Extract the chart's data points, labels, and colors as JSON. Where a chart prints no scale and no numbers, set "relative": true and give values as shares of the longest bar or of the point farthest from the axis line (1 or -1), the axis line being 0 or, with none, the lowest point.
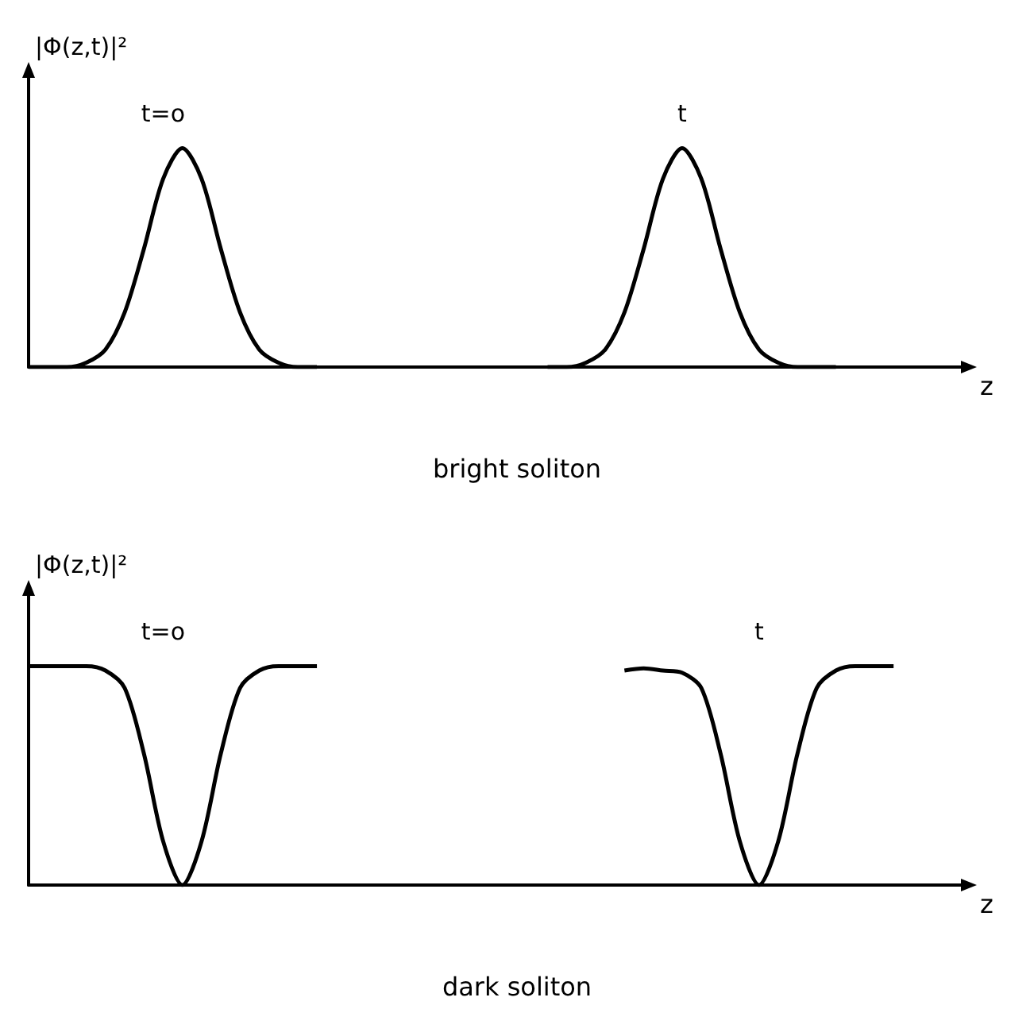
{
  "chart_data": [
    {
      "type": "line",
      "title": "bright soliton",
      "xlabel": "z",
      "ylabel": "|Φ(z,t)|²",
      "relative": true,
      "marker": "none",
      "categories": [
        null,
        null,
        null,
        null,
        null,
        null,
        null,
        null,
        null,
        null,
        null,
        null,
        null,
        null,
        null,
        null,
        null,
        null,
        null,
        null,
        null,
        null,
        null,
        null,
        null,
        null,
        null,
        null,
        null,
        null,
        null,
        null,
        null,
        null,
        null,
        null,
        null,
        null,
        null,
        null,
        null,
        null,
        null,
        null,
        null,
        null,
        null,
        null,
        null,
        null
      ],
      "series": [
        {
          "name": "t=o",
          "color": "#000000",
          "values": [
            0,
            0,
            0,
            0.02,
            0.08,
            0.25,
            0.54,
            0.86,
            1,
            0.86,
            0.54,
            0.25,
            0.08,
            0.02,
            0,
            0,
            null,
            null,
            null,
            null,
            null,
            null,
            null,
            null,
            null,
            null,
            null,
            null,
            null,
            null,
            null,
            null,
            null,
            null,
            null,
            null,
            null,
            null,
            null,
            null,
            null,
            null,
            null,
            null,
            null,
            null,
            null,
            null,
            null,
            null
          ]
        },
        {
          "name": "t",
          "color": "#000000",
          "values": [
            null,
            null,
            null,
            null,
            null,
            null,
            null,
            null,
            null,
            null,
            null,
            null,
            null,
            null,
            null,
            null,
            null,
            null,
            null,
            null,
            null,
            null,
            null,
            null,
            null,
            null,
            null,
            0,
            0,
            0.02,
            0.08,
            0.25,
            0.54,
            0.86,
            1,
            0.86,
            0.54,
            0.25,
            0.08,
            0.02,
            0,
            0,
            0,
            null,
            null,
            null,
            null,
            null,
            null,
            null
          ]
        }
      ]
    },
    {
      "type": "line",
      "title": "dark soliton",
      "xlabel": "z",
      "ylabel": "|Φ(z,t)|²",
      "relative": true,
      "marker": "none",
      "categories": [
        null,
        null,
        null,
        null,
        null,
        null,
        null,
        null,
        null,
        null,
        null,
        null,
        null,
        null,
        null,
        null,
        null,
        null,
        null,
        null,
        null,
        null,
        null,
        null,
        null,
        null,
        null,
        null,
        null,
        null,
        null,
        null,
        null,
        null,
        null,
        null,
        null,
        null,
        null,
        null,
        null,
        null,
        null,
        null,
        null,
        null,
        null,
        null,
        null,
        null
      ],
      "series": [
        {
          "name": "t=o",
          "color": "#000000",
          "values": [
            1,
            1,
            1,
            1,
            0.98,
            0.9,
            0.6,
            0.2,
            0,
            0.2,
            0.6,
            0.9,
            0.98,
            1,
            1,
            1,
            null,
            null,
            null,
            null,
            null,
            null,
            null,
            null,
            null,
            null,
            null,
            null,
            null,
            null,
            null,
            null,
            null,
            null,
            null,
            null,
            null,
            null,
            null,
            null,
            null,
            null,
            null,
            null,
            null,
            null,
            null,
            null,
            null,
            null
          ]
        },
        {
          "name": "t",
          "color": "#000000",
          "values": [
            null,
            null,
            null,
            null,
            null,
            null,
            null,
            null,
            null,
            null,
            null,
            null,
            null,
            null,
            null,
            null,
            null,
            null,
            null,
            null,
            null,
            null,
            null,
            null,
            null,
            null,
            null,
            null,
            null,
            null,
            null,
            0.98,
            0.99,
            0.98,
            0.97,
            0.9,
            0.6,
            0.2,
            0,
            0.2,
            0.6,
            0.9,
            0.98,
            1,
            1,
            1,
            null,
            null,
            null,
            null
          ]
        }
      ]
    }
  ]
}
